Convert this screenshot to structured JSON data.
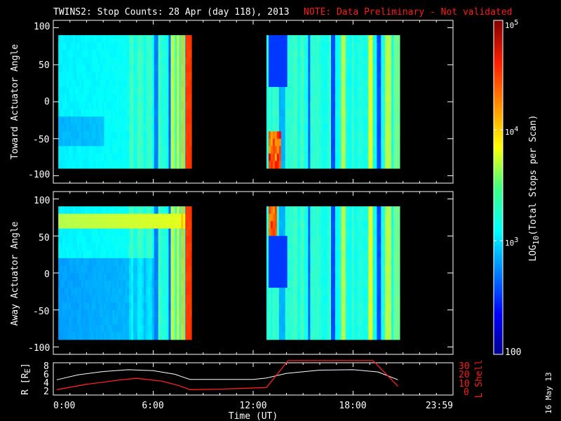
{
  "header": {
    "title": "TWINS2: Stop Counts: 28 Apr (day 118), 2013",
    "note": "NOTE: Data Preliminary - Not validated"
  },
  "footer_date": "16 May 13",
  "chart_data": [
    {
      "type": "heatmap",
      "panel": "toward",
      "ylabel": "Toward Actuator Angle",
      "ylim": [
        -110,
        110
      ],
      "yticks": [
        "100",
        "50",
        "0",
        "-50",
        "-100"
      ],
      "xlim_hours": [
        0,
        24
      ],
      "data_blocks_hours": [
        [
          0.3,
          8.2
        ],
        [
          12.8,
          20.7
        ]
      ],
      "angle_range": [
        -90,
        90
      ],
      "colorscale": "jet"
    },
    {
      "type": "heatmap",
      "panel": "away",
      "ylabel": "Away Actuator Angle",
      "ylim": [
        -110,
        110
      ],
      "yticks": [
        "100",
        "50",
        "0",
        "-50",
        "-100"
      ],
      "xlim_hours": [
        0,
        24
      ],
      "data_blocks_hours": [
        [
          0.3,
          8.2
        ],
        [
          12.8,
          20.7
        ]
      ],
      "angle_range": [
        -90,
        90
      ],
      "colorscale": "jet"
    },
    {
      "type": "line",
      "panel": "orbit",
      "xlabel": "Time (UT)",
      "xticks": [
        "0:00",
        "6:00",
        "12:00",
        "18:00",
        "23:59"
      ],
      "left_axis": {
        "label": "R [R",
        "label_sub": "E",
        "label_end": "]",
        "ticks": [
          "8",
          "6",
          "4",
          "2"
        ],
        "ylim": [
          1.5,
          8.5
        ]
      },
      "right_axis": {
        "label": "L Shell",
        "ticks": [
          "30",
          "20",
          "10",
          "0"
        ],
        "ylim": [
          0,
          30
        ],
        "color": "#ff2020"
      },
      "series": [
        {
          "axis": "left",
          "color": "#ffffff",
          "x": [
            0.2,
            1.5,
            3,
            4.5,
            6,
            7.3,
            8.2,
            10,
            12,
            12.8,
            14,
            16,
            18,
            19.5,
            20.7
          ],
          "y": [
            4.8,
            5.9,
            6.6,
            7.0,
            6.8,
            6.0,
            4.9,
            4.9,
            4.9,
            5.2,
            6.2,
            6.9,
            7.0,
            6.5,
            4.8
          ]
        },
        {
          "axis": "right",
          "color": "#ff2020",
          "x": [
            0.2,
            2,
            4,
            5,
            6.5,
            7.5,
            8.2,
            10,
            12.8,
            14.1,
            19.2,
            20.7
          ],
          "y": [
            5,
            10,
            14,
            15.5,
            13,
            9,
            5,
            5.5,
            7,
            32,
            32,
            8
          ]
        }
      ]
    }
  ],
  "colorbar": {
    "label_prefix": "LOG",
    "label_sub": "10",
    "label_suffix": "(Total Stops per Scan)",
    "ticks": [
      {
        "base": "10",
        "exp": "5"
      },
      {
        "base": "10",
        "exp": "4"
      },
      {
        "base": "10",
        "exp": "3"
      },
      {
        "base": "100",
        "exp": ""
      }
    ]
  }
}
